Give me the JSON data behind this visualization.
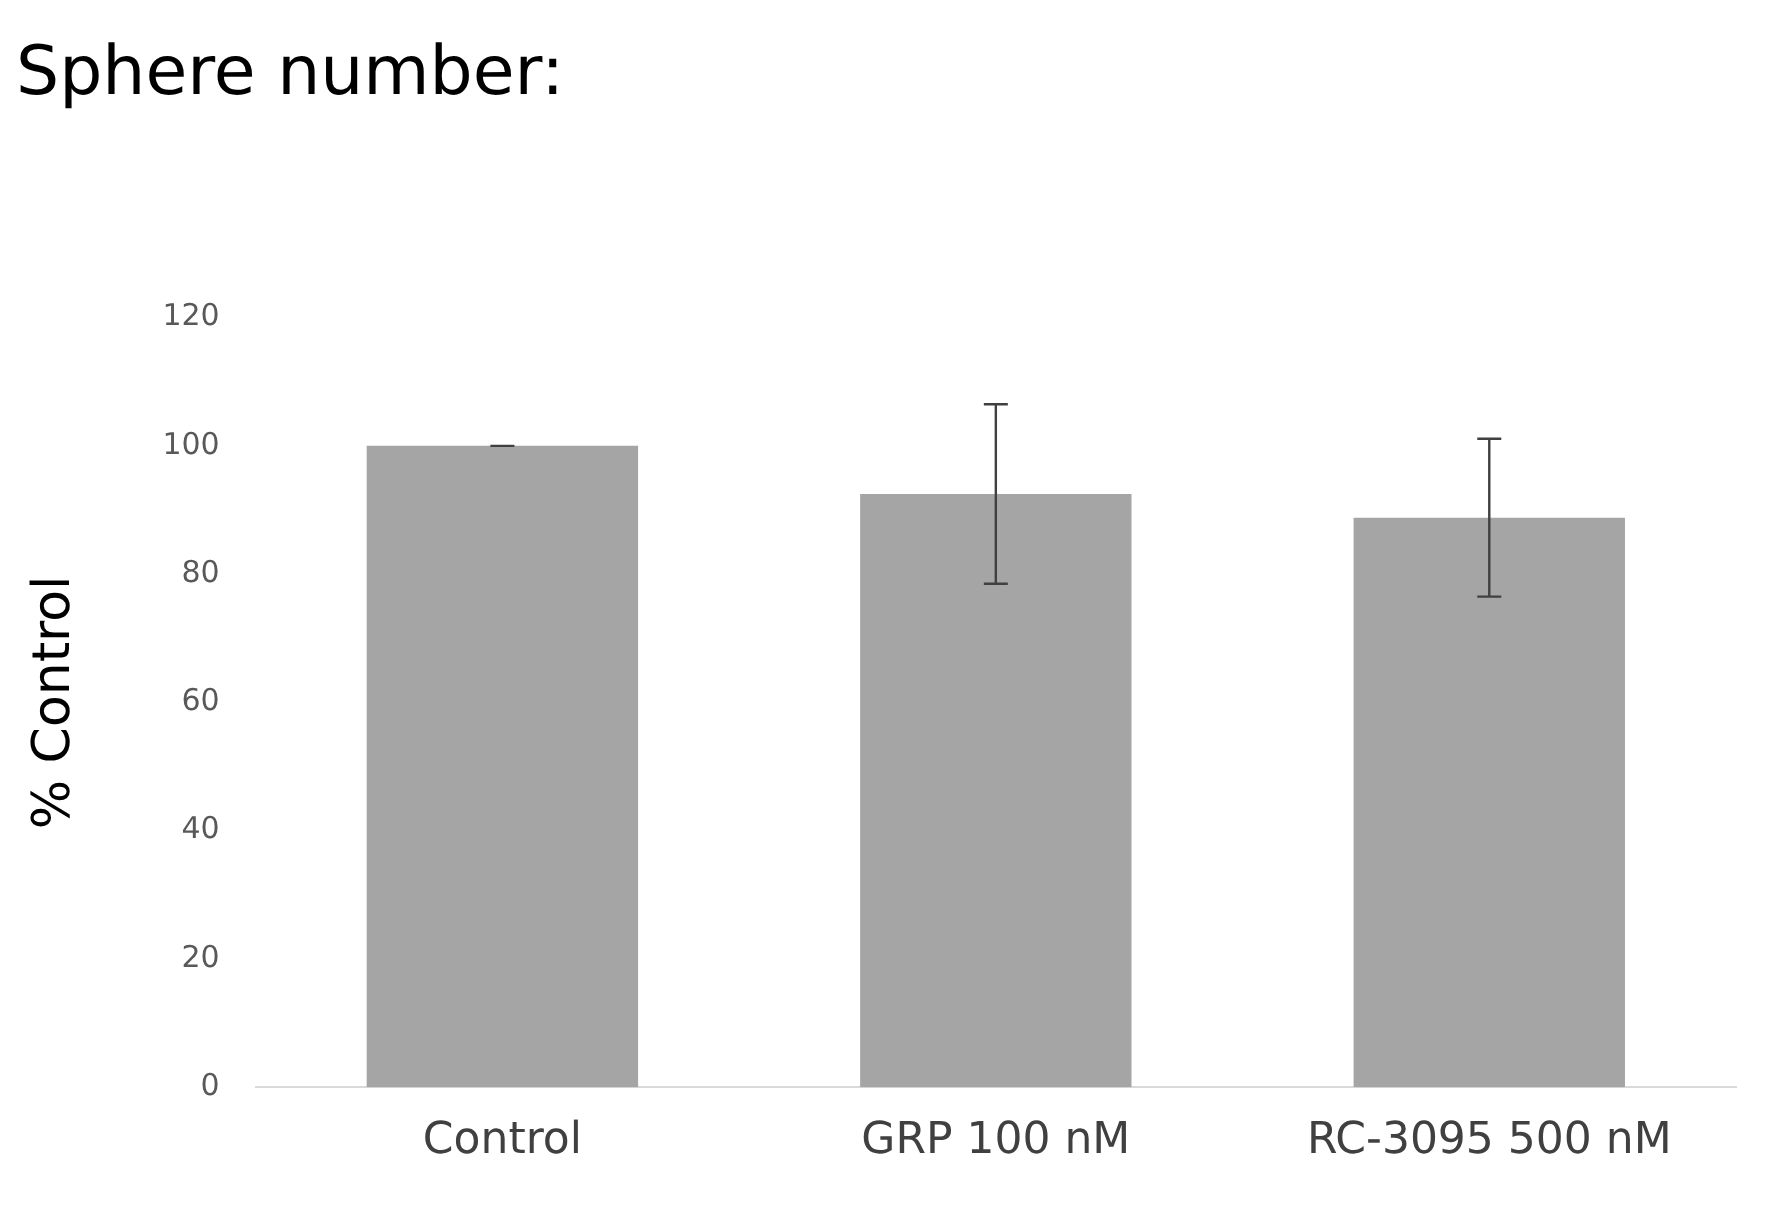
{
  "chart_data": {
    "type": "bar",
    "title": "Sphere number:",
    "ylabel": "% Control",
    "categories": [
      "Control",
      "GRP 100 nM",
      "RC-3095 500 nM"
    ],
    "values": [
      100,
      92.5,
      88.8
    ],
    "errors": [
      0,
      14,
      12.3
    ],
    "color": "#a5a5a5",
    "ylim": [
      0,
      120
    ],
    "yticks": [
      0,
      20,
      40,
      60,
      80,
      100,
      120
    ],
    "grid": false,
    "legend": false
  }
}
